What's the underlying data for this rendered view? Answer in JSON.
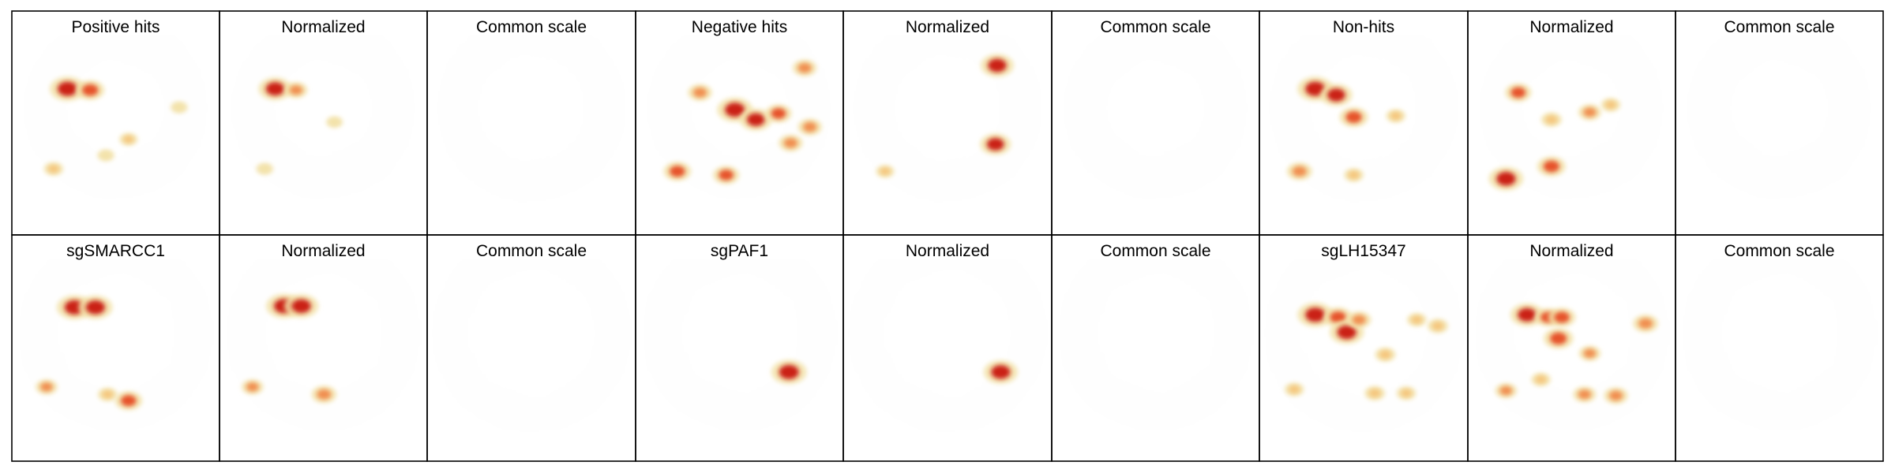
{
  "figure": {
    "rows": [
      {
        "panels": [
          {
            "title": "Positive hits",
            "view": "density",
            "hotspots": [
              [
                0.2,
                0.25,
                1.0
              ],
              [
                0.33,
                0.26,
                0.7
              ],
              [
                0.55,
                0.66,
                0.25
              ],
              [
                0.12,
                0.9,
                0.3
              ],
              [
                0.42,
                0.79,
                0.2
              ],
              [
                0.84,
                0.4,
                0.2
              ]
            ]
          },
          {
            "title": "Normalized",
            "view": "density",
            "hotspots": [
              [
                0.2,
                0.25,
                0.9
              ],
              [
                0.32,
                0.26,
                0.45
              ],
              [
                0.14,
                0.9,
                0.2
              ],
              [
                0.54,
                0.52,
                0.18
              ]
            ]
          },
          {
            "title": "Common scale",
            "view": "empty",
            "hotspots": []
          },
          {
            "title": "Negative hits",
            "view": "density",
            "hotspots": [
              [
                0.45,
                0.42,
                1.0
              ],
              [
                0.57,
                0.5,
                0.85
              ],
              [
                0.25,
                0.28,
                0.5
              ],
              [
                0.7,
                0.45,
                0.6
              ],
              [
                0.12,
                0.92,
                0.65
              ],
              [
                0.4,
                0.95,
                0.6
              ],
              [
                0.85,
                0.08,
                0.5
              ],
              [
                0.77,
                0.69,
                0.5
              ],
              [
                0.88,
                0.56,
                0.5
              ]
            ]
          },
          {
            "title": "Normalized",
            "view": "density",
            "hotspots": [
              [
                0.76,
                0.06,
                0.9
              ],
              [
                0.75,
                0.7,
                0.8
              ],
              [
                0.12,
                0.92,
                0.25
              ]
            ]
          },
          {
            "title": "Common scale",
            "view": "empty",
            "hotspots": []
          },
          {
            "title": "Non-hits",
            "view": "density",
            "hotspots": [
              [
                0.2,
                0.25,
                1.0
              ],
              [
                0.32,
                0.3,
                0.85
              ],
              [
                0.42,
                0.48,
                0.7
              ],
              [
                0.11,
                0.92,
                0.55
              ],
              [
                0.42,
                0.95,
                0.3
              ],
              [
                0.66,
                0.47,
                0.3
              ]
            ]
          },
          {
            "title": "Normalized",
            "view": "density",
            "hotspots": [
              [
                0.17,
                0.28,
                0.6
              ],
              [
                0.1,
                0.98,
                0.95
              ],
              [
                0.36,
                0.5,
                0.35
              ],
              [
                0.58,
                0.44,
                0.45
              ],
              [
                0.7,
                0.38,
                0.3
              ],
              [
                0.36,
                0.88,
                0.7
              ]
            ]
          },
          {
            "title": "Common scale",
            "view": "empty",
            "hotspots": []
          }
        ]
      },
      {
        "panels": [
          {
            "title": "sgSMARCC1",
            "view": "density",
            "hotspots": [
              [
                0.24,
                0.2,
                1.0
              ],
              [
                0.36,
                0.2,
                0.95
              ],
              [
                0.08,
                0.84,
                0.4
              ],
              [
                0.55,
                0.95,
                0.65
              ],
              [
                0.43,
                0.9,
                0.3
              ]
            ]
          },
          {
            "title": "Normalized",
            "view": "density",
            "hotspots": [
              [
                0.25,
                0.19,
                1.0
              ],
              [
                0.35,
                0.19,
                0.95
              ],
              [
                0.07,
                0.84,
                0.4
              ],
              [
                0.48,
                0.9,
                0.55
              ]
            ]
          },
          {
            "title": "Common scale",
            "view": "empty",
            "hotspots": []
          },
          {
            "title": "sgPAF1",
            "view": "density",
            "hotspots": [
              [
                0.76,
                0.72,
                1.0
              ]
            ]
          },
          {
            "title": "Normalized",
            "view": "density",
            "hotspots": [
              [
                0.78,
                0.72,
                0.95
              ]
            ]
          },
          {
            "title": "Common scale",
            "view": "empty",
            "hotspots": []
          },
          {
            "title": "sgLH15347",
            "view": "density",
            "hotspots": [
              [
                0.2,
                0.26,
                1.0
              ],
              [
                0.33,
                0.28,
                0.7
              ],
              [
                0.38,
                0.4,
                0.95
              ],
              [
                0.45,
                0.3,
                0.5
              ],
              [
                0.6,
                0.58,
                0.35
              ],
              [
                0.9,
                0.35,
                0.35
              ],
              [
                0.78,
                0.3,
                0.3
              ],
              [
                0.54,
                0.89,
                0.35
              ],
              [
                0.72,
                0.89,
                0.3
              ],
              [
                0.08,
                0.86,
                0.3
              ]
            ]
          },
          {
            "title": "Normalized",
            "view": "density",
            "hotspots": [
              [
                0.22,
                0.26,
                0.9
              ],
              [
                0.34,
                0.28,
                0.6
              ],
              [
                0.42,
                0.28,
                0.65
              ],
              [
                0.4,
                0.45,
                0.75
              ],
              [
                0.58,
                0.57,
                0.4
              ],
              [
                0.9,
                0.33,
                0.55
              ],
              [
                0.55,
                0.9,
                0.45
              ],
              [
                0.73,
                0.91,
                0.5
              ],
              [
                0.1,
                0.87,
                0.4
              ],
              [
                0.3,
                0.78,
                0.3
              ]
            ]
          },
          {
            "title": "Common scale",
            "view": "empty",
            "hotspots": []
          }
        ]
      }
    ]
  },
  "colors": {
    "background": "#ffffff",
    "border": "#000000",
    "embedding_fill": "#e4e4e4",
    "density_low": "#d4e2ec",
    "density_mid": "#f2e2a8",
    "density_high": "#bf1212"
  }
}
